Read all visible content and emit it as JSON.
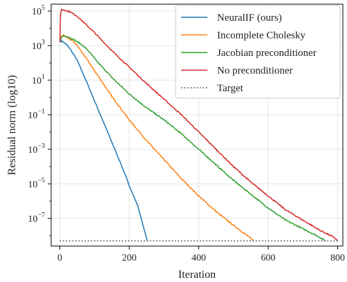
{
  "chart_data": {
    "type": "line",
    "xlabel": "Iteration",
    "ylabel": "Residual norm (log10)",
    "xlim": [
      -25,
      815
    ],
    "ylim_log10": [
      -8.6,
      5.4
    ],
    "yscale": "log",
    "grid": true,
    "legend_position": "top-right",
    "x_ticks": [
      0,
      200,
      400,
      600,
      800
    ],
    "x_tick_labels": [
      "0",
      "200",
      "400",
      "600",
      "800"
    ],
    "y_ticks_log10": [
      5,
      3,
      1,
      -1,
      -3,
      -5,
      -7
    ],
    "y_tick_labels": [
      {
        "base": "10",
        "exp": "5"
      },
      {
        "base": "10",
        "exp": "3"
      },
      {
        "base": "10",
        "exp": "1"
      },
      {
        "base": "10",
        "exp": "−1"
      },
      {
        "base": "10",
        "exp": "−3"
      },
      {
        "base": "10",
        "exp": "−5"
      },
      {
        "base": "10",
        "exp": "−7"
      }
    ],
    "series": [
      {
        "name": "NeuralIF (ours)",
        "color": "#1f77b4",
        "style": "solid",
        "points": [
          [
            0,
            3.2
          ],
          [
            5,
            3.28
          ],
          [
            10,
            3.2
          ],
          [
            20,
            3.05
          ],
          [
            30,
            2.8
          ],
          [
            50,
            2.15
          ],
          [
            75,
            1.0
          ],
          [
            100,
            -0.2
          ],
          [
            125,
            -1.4
          ],
          [
            150,
            -2.6
          ],
          [
            175,
            -3.8
          ],
          [
            200,
            -5.1
          ],
          [
            225,
            -6.3
          ],
          [
            245,
            -7.8
          ],
          [
            252,
            -8.3
          ]
        ]
      },
      {
        "name": "Incomplete Cholesky",
        "color": "#ff7f0e",
        "style": "solid",
        "points": [
          [
            0,
            3.45
          ],
          [
            5,
            3.55
          ],
          [
            10,
            3.6
          ],
          [
            20,
            3.5
          ],
          [
            40,
            3.2
          ],
          [
            50,
            3.0
          ],
          [
            75,
            2.3
          ],
          [
            100,
            1.55
          ],
          [
            125,
            0.8
          ],
          [
            150,
            0.05
          ],
          [
            200,
            -1.3
          ],
          [
            250,
            -2.5
          ],
          [
            300,
            -3.6
          ],
          [
            350,
            -4.7
          ],
          [
            400,
            -5.7
          ],
          [
            450,
            -6.6
          ],
          [
            500,
            -7.4
          ],
          [
            540,
            -8.0
          ],
          [
            558,
            -8.3
          ]
        ]
      },
      {
        "name": "Jacobian preconditioner",
        "color": "#2ca02c",
        "style": "solid",
        "points": [
          [
            0,
            3.3
          ],
          [
            5,
            3.5
          ],
          [
            10,
            3.55
          ],
          [
            20,
            3.55
          ],
          [
            40,
            3.35
          ],
          [
            60,
            3.1
          ],
          [
            80,
            2.75
          ],
          [
            100,
            2.25
          ],
          [
            150,
            1.15
          ],
          [
            200,
            0.2
          ],
          [
            250,
            -0.6
          ],
          [
            300,
            -1.3
          ],
          [
            350,
            -2.1
          ],
          [
            400,
            -3.0
          ],
          [
            450,
            -3.9
          ],
          [
            500,
            -4.8
          ],
          [
            550,
            -5.6
          ],
          [
            600,
            -6.4
          ],
          [
            650,
            -7.1
          ],
          [
            700,
            -7.6
          ],
          [
            740,
            -8.0
          ],
          [
            765,
            -8.3
          ]
        ]
      },
      {
        "name": "No preconditioner",
        "color": "#d62728",
        "style": "solid",
        "points": [
          [
            0,
            3.2
          ],
          [
            2,
            4.8
          ],
          [
            5,
            5.08
          ],
          [
            15,
            5.05
          ],
          [
            30,
            4.95
          ],
          [
            50,
            4.7
          ],
          [
            100,
            3.75
          ],
          [
            150,
            2.7
          ],
          [
            200,
            1.75
          ],
          [
            250,
            0.8
          ],
          [
            300,
            -0.1
          ],
          [
            350,
            -1.0
          ],
          [
            400,
            -2.0
          ],
          [
            450,
            -3.0
          ],
          [
            500,
            -4.0
          ],
          [
            550,
            -4.9
          ],
          [
            600,
            -5.7
          ],
          [
            650,
            -6.5
          ],
          [
            700,
            -7.1
          ],
          [
            750,
            -7.7
          ],
          [
            790,
            -8.1
          ],
          [
            800,
            -8.3
          ]
        ]
      },
      {
        "name": "Target",
        "color": "#333333",
        "style": "dotted",
        "points": [
          [
            0,
            -8.3
          ],
          [
            800,
            -8.3
          ]
        ]
      }
    ]
  }
}
